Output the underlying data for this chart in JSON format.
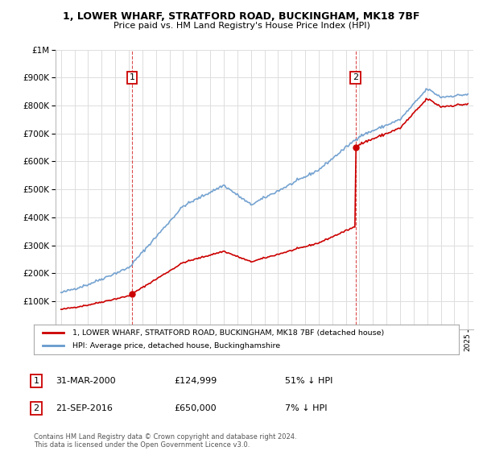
{
  "title1": "1, LOWER WHARF, STRATFORD ROAD, BUCKINGHAM, MK18 7BF",
  "title2": "Price paid vs. HM Land Registry's House Price Index (HPI)",
  "sale1_date": "31-MAR-2000",
  "sale1_price": 124999,
  "sale1_label": "51% ↓ HPI",
  "sale2_date": "21-SEP-2016",
  "sale2_price": 650000,
  "sale2_label": "7% ↓ HPI",
  "legend1": "1, LOWER WHARF, STRATFORD ROAD, BUCKINGHAM, MK18 7BF (detached house)",
  "legend2": "HPI: Average price, detached house, Buckinghamshire",
  "footer": "Contains HM Land Registry data © Crown copyright and database right 2024.\nThis data is licensed under the Open Government Licence v3.0.",
  "hpi_color": "#6699cc",
  "price_color": "#cc0000",
  "background": "#ffffff",
  "grid_color": "#dddddd",
  "ylim": [
    0,
    1000000
  ],
  "yticks": [
    0,
    100000,
    200000,
    300000,
    400000,
    500000,
    600000,
    700000,
    800000,
    900000,
    1000000
  ],
  "sale1_year": 2000.25,
  "sale2_year": 2016.72,
  "xlim_left": 1994.6,
  "xlim_right": 2025.4
}
